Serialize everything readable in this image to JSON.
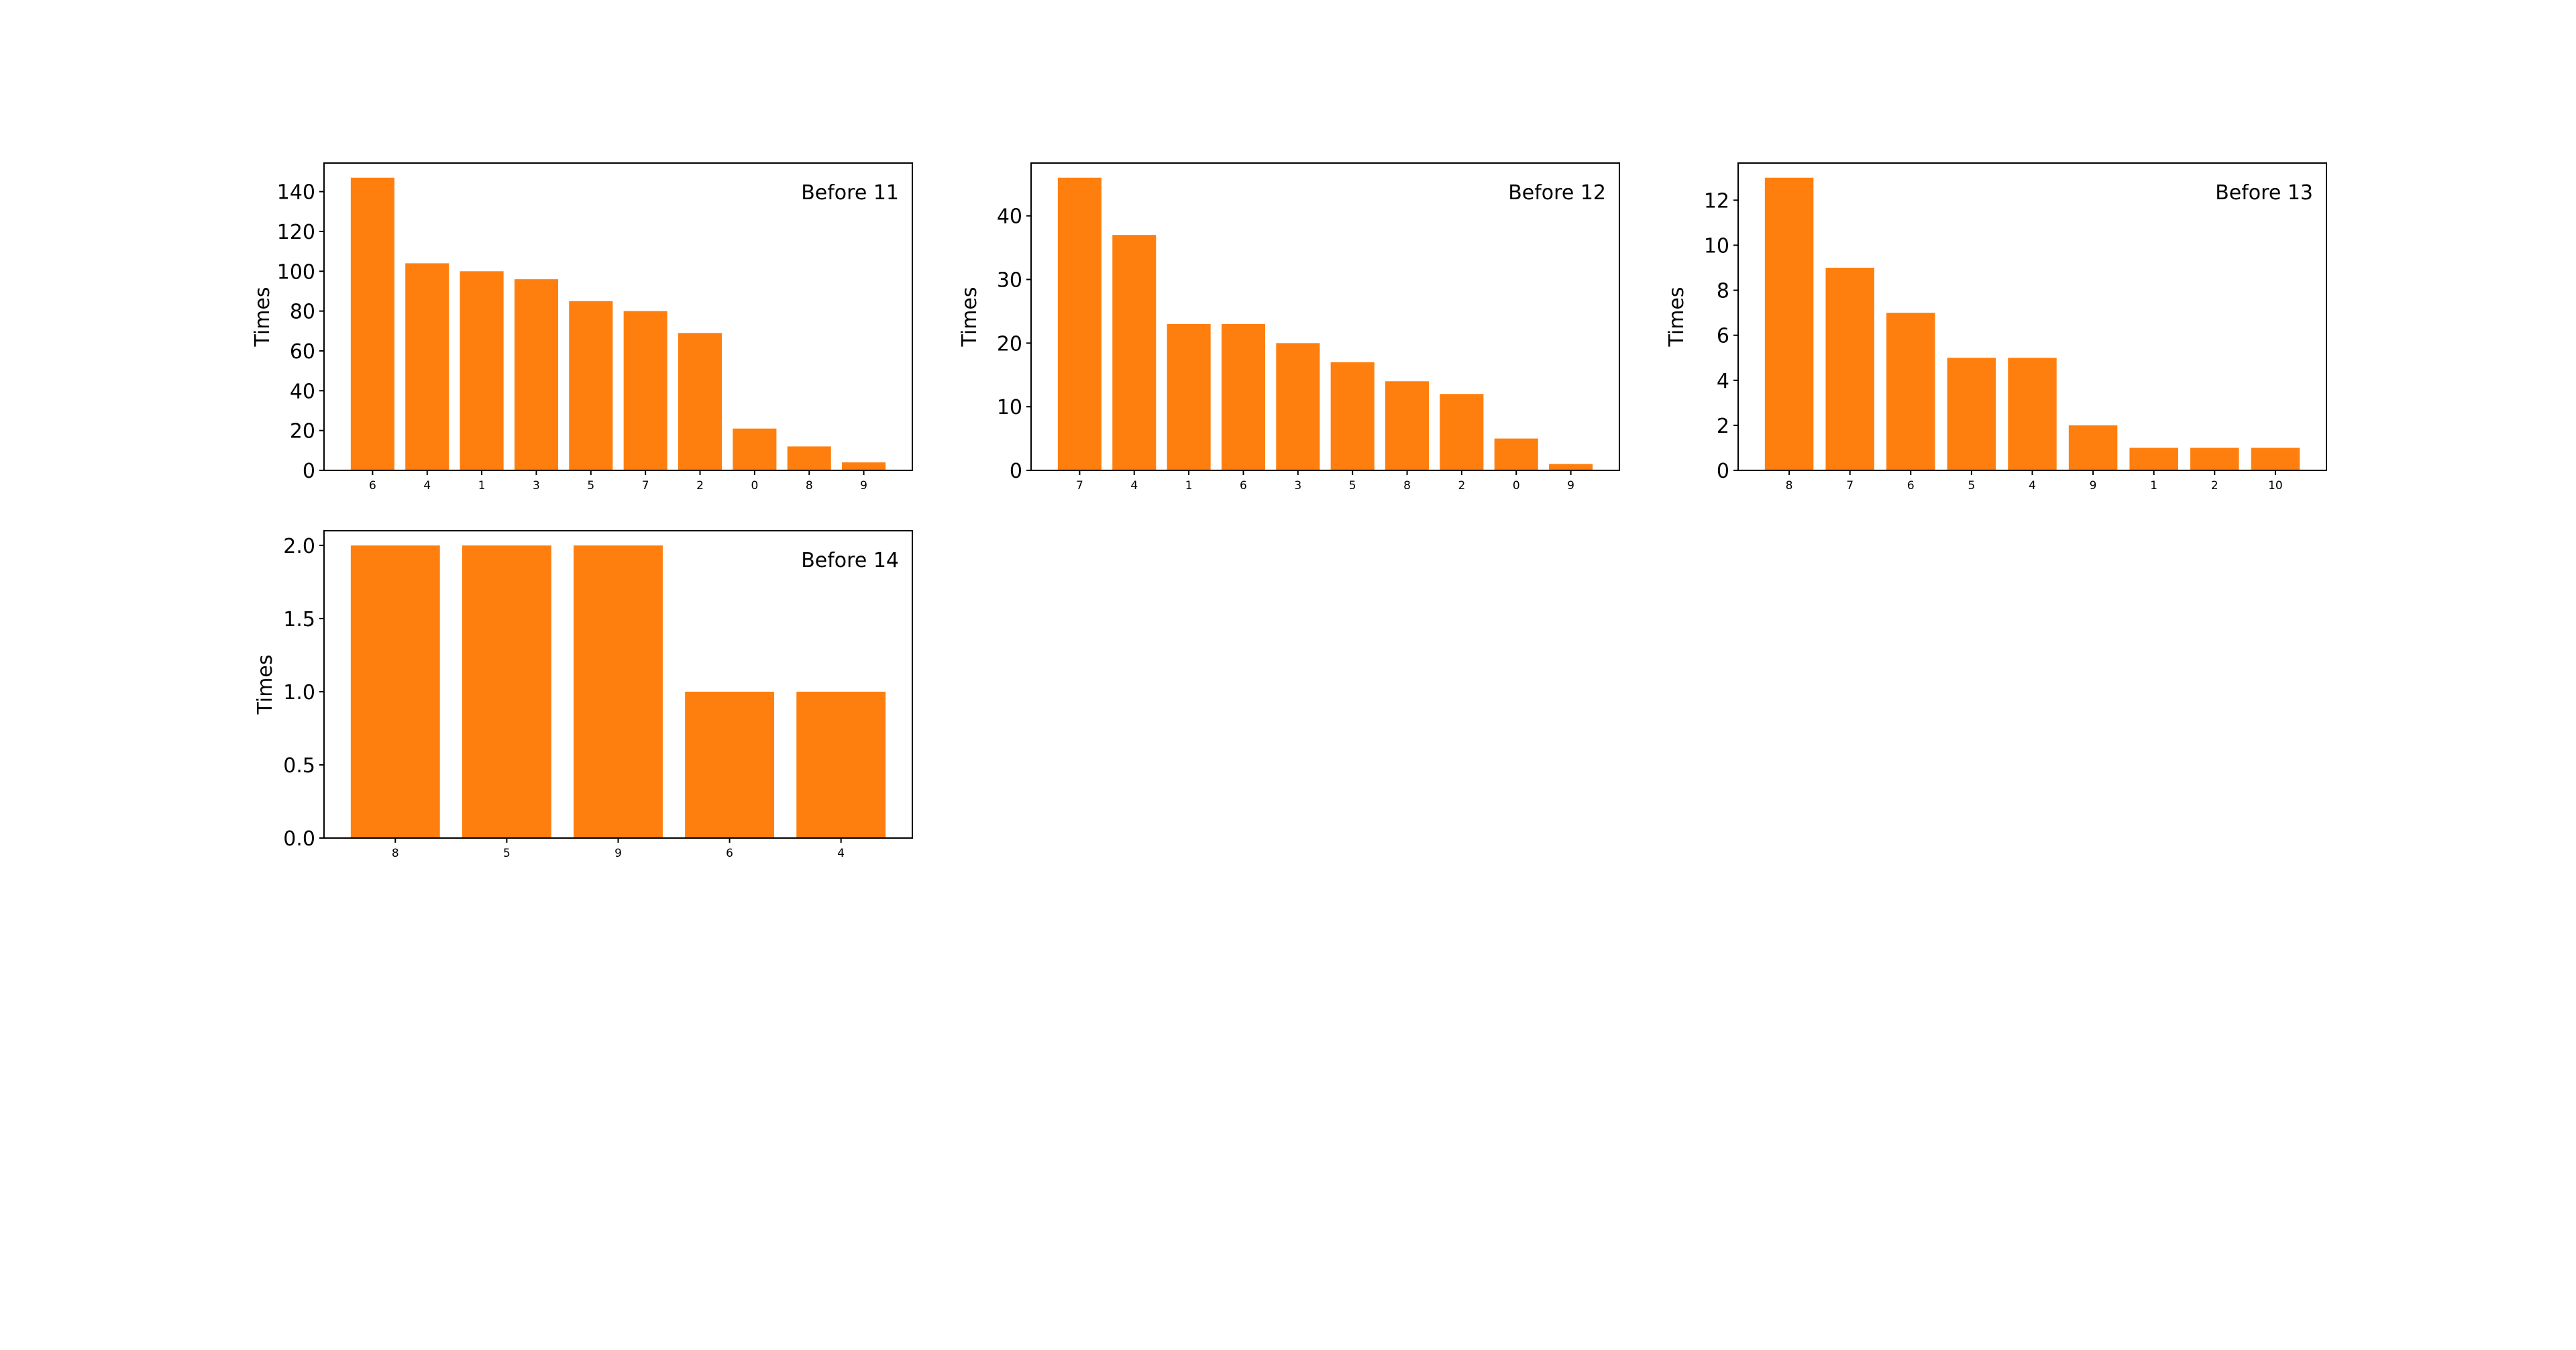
{
  "colors": {
    "bar": "#ff7f0e",
    "background": "#ffffff",
    "axis": "#000000"
  },
  "chart_data": [
    {
      "type": "bar",
      "annotation": "Before 11",
      "legend_position": "top-right",
      "ylabel": "Times",
      "xlabel": "",
      "categories": [
        "6",
        "4",
        "1",
        "3",
        "5",
        "7",
        "2",
        "0",
        "8",
        "9"
      ],
      "values": [
        147,
        104,
        100,
        96,
        85,
        80,
        69,
        21,
        12,
        4
      ],
      "ylim": [
        0,
        154.35
      ],
      "yticks": [
        0,
        20,
        40,
        60,
        80,
        100,
        120,
        140
      ],
      "grid": false
    },
    {
      "type": "bar",
      "annotation": "Before 12",
      "legend_position": "top-right",
      "ylabel": "Times",
      "xlabel": "",
      "categories": [
        "7",
        "4",
        "1",
        "6",
        "3",
        "5",
        "8",
        "2",
        "0",
        "9"
      ],
      "values": [
        46,
        37,
        23,
        23,
        20,
        17,
        14,
        12,
        5,
        1
      ],
      "ylim": [
        0,
        48.3
      ],
      "yticks": [
        0,
        10,
        20,
        30,
        40
      ],
      "grid": false
    },
    {
      "type": "bar",
      "annotation": "Before 13",
      "legend_position": "top-right",
      "ylabel": "Times",
      "xlabel": "",
      "categories": [
        "8",
        "7",
        "6",
        "5",
        "4",
        "9",
        "1",
        "2",
        "10"
      ],
      "values": [
        13,
        9,
        7,
        5,
        5,
        2,
        1,
        1,
        1
      ],
      "ylim": [
        0,
        13.65
      ],
      "yticks": [
        0,
        2,
        4,
        6,
        8,
        10,
        12
      ],
      "grid": false
    },
    {
      "type": "bar",
      "annotation": "Before 14",
      "legend_position": "top-right",
      "ylabel": "Times",
      "xlabel": "",
      "categories": [
        "8",
        "5",
        "9",
        "6",
        "4"
      ],
      "values": [
        2,
        2,
        2,
        1,
        1
      ],
      "ylim": [
        0,
        2.1
      ],
      "yticks": [
        "0.0",
        "0.5",
        "1.0",
        "1.5",
        "2.0"
      ],
      "grid": false
    }
  ]
}
